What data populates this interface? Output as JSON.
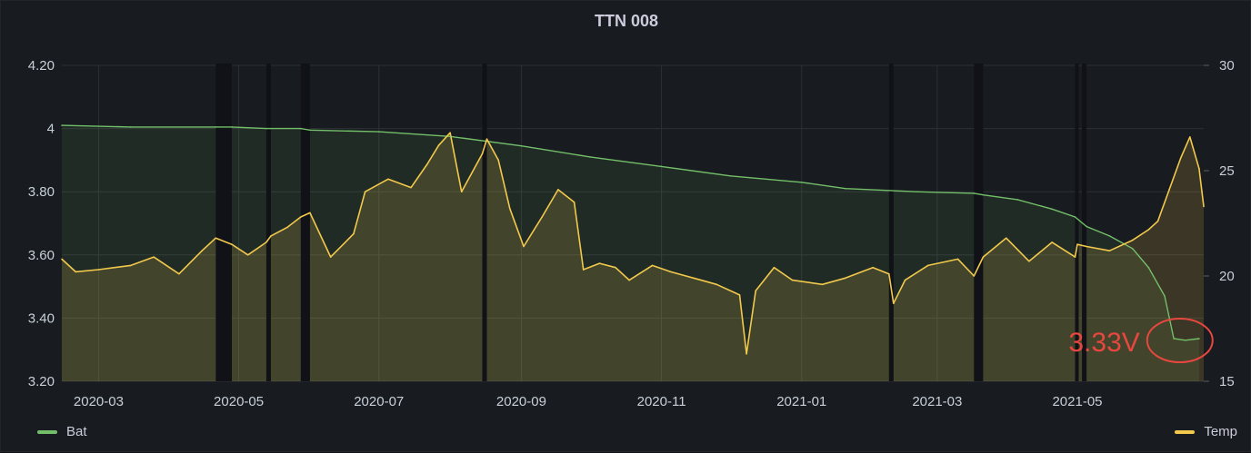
{
  "chart_data": {
    "type": "line",
    "title": "TTN 008",
    "y_left": {
      "ticks": [
        "3.20",
        "3.40",
        "3.60",
        "3.80",
        "4",
        "4.20"
      ],
      "ylim": [
        3.2,
        4.2
      ]
    },
    "y_right": {
      "ticks": [
        "15",
        "20",
        "25",
        "30"
      ],
      "ylim": [
        15,
        30
      ]
    },
    "x_ticks": [
      "2020-03",
      "2020-05",
      "2020-07",
      "2020-09",
      "2020-11",
      "2021-01",
      "2021-03",
      "2021-05"
    ],
    "x_range": [
      "2020-02-14",
      "2021-06-25"
    ],
    "gaps": [
      [
        "2020-04-21",
        "2020-04-28"
      ],
      [
        "2020-05-13",
        "2020-05-15"
      ],
      [
        "2020-05-28",
        "2020-06-01"
      ],
      [
        "2020-08-15",
        "2020-08-17"
      ],
      [
        "2021-02-08",
        "2021-02-10"
      ],
      [
        "2021-03-17",
        "2021-03-21"
      ],
      [
        "2021-04-30",
        "2021-05-01"
      ],
      [
        "2021-05-03",
        "2021-05-05"
      ]
    ],
    "series": [
      {
        "name": "Bat",
        "axis": "left",
        "color": "#73bf69",
        "points": [
          [
            "2020-02-14",
            4.01
          ],
          [
            "2020-03-15",
            4.005
          ],
          [
            "2020-04-21",
            4.005
          ],
          [
            "2020-04-28",
            4.005
          ],
          [
            "2020-05-13",
            4.0
          ],
          [
            "2020-05-28",
            4.0
          ],
          [
            "2020-06-01",
            3.995
          ],
          [
            "2020-07-01",
            3.99
          ],
          [
            "2020-08-01",
            3.975
          ],
          [
            "2020-09-01",
            3.945
          ],
          [
            "2020-10-01",
            3.91
          ],
          [
            "2020-11-01",
            3.88
          ],
          [
            "2020-12-01",
            3.85
          ],
          [
            "2021-01-01",
            3.83
          ],
          [
            "2021-01-20",
            3.81
          ],
          [
            "2021-02-20",
            3.8
          ],
          [
            "2021-03-17",
            3.795
          ],
          [
            "2021-03-21",
            3.79
          ],
          [
            "2021-04-05",
            3.775
          ],
          [
            "2021-04-20",
            3.745
          ],
          [
            "2021-04-30",
            3.72
          ],
          [
            "2021-05-05",
            3.69
          ],
          [
            "2021-05-15",
            3.66
          ],
          [
            "2021-05-25",
            3.62
          ],
          [
            "2021-06-01",
            3.56
          ],
          [
            "2021-06-08",
            3.47
          ],
          [
            "2021-06-12",
            3.335
          ],
          [
            "2021-06-17",
            3.33
          ],
          [
            "2021-06-23",
            3.335
          ]
        ]
      },
      {
        "name": "Temp",
        "axis": "right",
        "color": "#f2c94c",
        "points": [
          [
            "2020-02-14",
            20.8
          ],
          [
            "2020-02-20",
            20.2
          ],
          [
            "2020-03-01",
            20.3
          ],
          [
            "2020-03-15",
            20.5
          ],
          [
            "2020-03-25",
            20.9
          ],
          [
            "2020-04-05",
            20.1
          ],
          [
            "2020-04-15",
            21.2
          ],
          [
            "2020-04-21",
            21.8
          ],
          [
            "2020-04-28",
            21.5
          ],
          [
            "2020-05-05",
            21.0
          ],
          [
            "2020-05-13",
            21.6
          ],
          [
            "2020-05-15",
            21.9
          ],
          [
            "2020-05-22",
            22.3
          ],
          [
            "2020-05-28",
            22.8
          ],
          [
            "2020-06-01",
            23.0
          ],
          [
            "2020-06-10",
            20.9
          ],
          [
            "2020-06-20",
            22.0
          ],
          [
            "2020-06-25",
            24.0
          ],
          [
            "2020-07-05",
            24.6
          ],
          [
            "2020-07-15",
            24.2
          ],
          [
            "2020-07-22",
            25.3
          ],
          [
            "2020-07-27",
            26.2
          ],
          [
            "2020-08-01",
            26.8
          ],
          [
            "2020-08-06",
            24.0
          ],
          [
            "2020-08-15",
            25.8
          ],
          [
            "2020-08-17",
            26.5
          ],
          [
            "2020-08-22",
            25.5
          ],
          [
            "2020-08-27",
            23.2
          ],
          [
            "2020-09-02",
            21.4
          ],
          [
            "2020-09-10",
            22.8
          ],
          [
            "2020-09-17",
            24.1
          ],
          [
            "2020-09-24",
            23.5
          ],
          [
            "2020-09-28",
            20.3
          ],
          [
            "2020-10-05",
            20.6
          ],
          [
            "2020-10-12",
            20.4
          ],
          [
            "2020-10-18",
            19.8
          ],
          [
            "2020-10-28",
            20.5
          ],
          [
            "2020-11-05",
            20.2
          ],
          [
            "2020-11-15",
            19.9
          ],
          [
            "2020-11-25",
            19.6
          ],
          [
            "2020-12-05",
            19.1
          ],
          [
            "2020-12-08",
            16.3
          ],
          [
            "2020-12-12",
            19.3
          ],
          [
            "2020-12-20",
            20.4
          ],
          [
            "2020-12-28",
            19.8
          ],
          [
            "2021-01-10",
            19.6
          ],
          [
            "2021-01-20",
            19.9
          ],
          [
            "2021-02-01",
            20.4
          ],
          [
            "2021-02-08",
            20.1
          ],
          [
            "2021-02-10",
            18.7
          ],
          [
            "2021-02-15",
            19.8
          ],
          [
            "2021-02-25",
            20.5
          ],
          [
            "2021-03-10",
            20.8
          ],
          [
            "2021-03-17",
            20.0
          ],
          [
            "2021-03-21",
            20.9
          ],
          [
            "2021-03-31",
            21.8
          ],
          [
            "2021-04-10",
            20.7
          ],
          [
            "2021-04-20",
            21.6
          ],
          [
            "2021-04-30",
            20.9
          ],
          [
            "2021-05-01",
            21.5
          ],
          [
            "2021-05-05",
            21.4
          ],
          [
            "2021-05-15",
            21.2
          ],
          [
            "2021-05-25",
            21.7
          ],
          [
            "2021-06-01",
            22.2
          ],
          [
            "2021-06-05",
            22.6
          ],
          [
            "2021-06-10",
            24.1
          ],
          [
            "2021-06-15",
            25.6
          ],
          [
            "2021-06-19",
            26.6
          ],
          [
            "2021-06-23",
            25.1
          ],
          [
            "2021-06-25",
            23.3
          ]
        ]
      }
    ],
    "annotation": {
      "text": "3.33V",
      "date": "2021-06-17",
      "value": 3.335
    },
    "legend": "bottom"
  }
}
